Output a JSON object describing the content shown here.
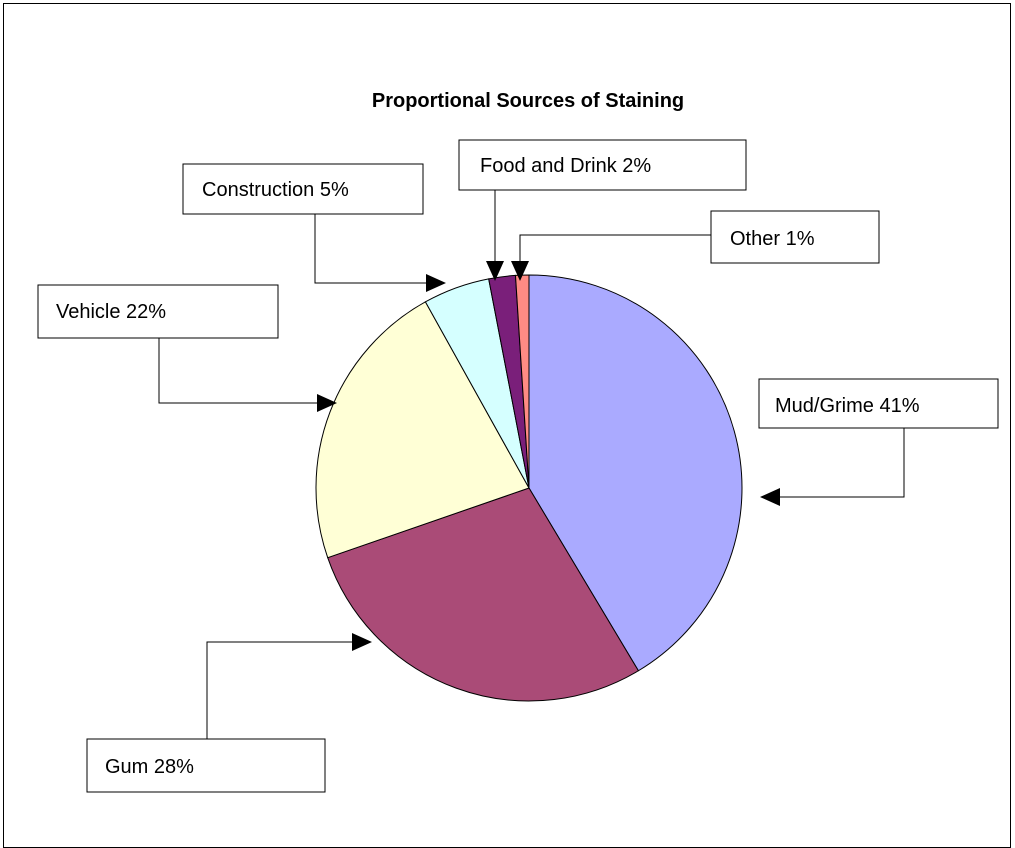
{
  "chart_data": {
    "type": "pie",
    "title": "Proportional Sources of Staining",
    "slices": [
      {
        "label": "Mud/Grime 41%",
        "value": 41,
        "color": "#aaaaff"
      },
      {
        "label": "Gum 28%",
        "value": 28,
        "color": "#aa4b77"
      },
      {
        "label": "Vehicle 22%",
        "value": 22,
        "color": "#ffffd6"
      },
      {
        "label": "Construction 5%",
        "value": 5,
        "color": "#d5ffff"
      },
      {
        "label": "Food and Drink 2%",
        "value": 2,
        "color": "#7a1f7a"
      },
      {
        "label": "Other 1%",
        "value": 1,
        "color": "#ff8b84"
      }
    ],
    "start": "12 o'clock",
    "direction": "clockwise",
    "label_style": "boxed callouts with elbow arrows"
  }
}
